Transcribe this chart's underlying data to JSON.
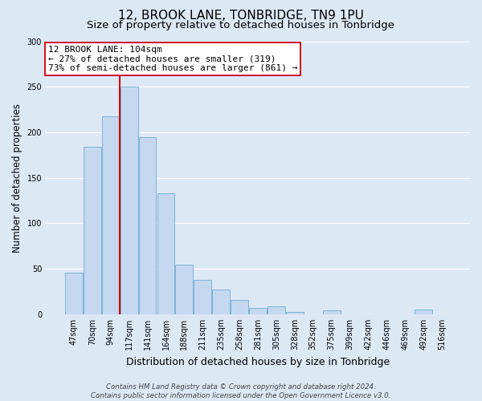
{
  "title": "12, BROOK LANE, TONBRIDGE, TN9 1PU",
  "subtitle": "Size of property relative to detached houses in Tonbridge",
  "xlabel": "Distribution of detached houses by size in Tonbridge",
  "ylabel": "Number of detached properties",
  "categories": [
    "47sqm",
    "70sqm",
    "94sqm",
    "117sqm",
    "141sqm",
    "164sqm",
    "188sqm",
    "211sqm",
    "235sqm",
    "258sqm",
    "281sqm",
    "305sqm",
    "328sqm",
    "352sqm",
    "375sqm",
    "399sqm",
    "422sqm",
    "446sqm",
    "469sqm",
    "492sqm",
    "516sqm"
  ],
  "values": [
    46,
    184,
    218,
    250,
    195,
    133,
    55,
    38,
    27,
    16,
    7,
    9,
    3,
    0,
    4,
    0,
    0,
    0,
    0,
    5,
    0
  ],
  "bar_color": "#c5d8f0",
  "bar_edge_color": "#7ab4d8",
  "vline_x_index": 2.5,
  "vline_color": "#cc0000",
  "ylim": [
    0,
    300
  ],
  "yticks": [
    0,
    50,
    100,
    150,
    200,
    250,
    300
  ],
  "annotation_line1": "12 BROOK LANE: 104sqm",
  "annotation_line2": "← 27% of detached houses are smaller (319)",
  "annotation_line3": "73% of semi-detached houses are larger (861) →",
  "annotation_box_facecolor": "#ffffff",
  "annotation_box_edgecolor": "#cc0000",
  "footer_line1": "Contains HM Land Registry data © Crown copyright and database right 2024.",
  "footer_line2": "Contains public sector information licensed under the Open Government Licence v3.0.",
  "fig_facecolor": "#dde8f5",
  "ax_facecolor": "#dde8f5",
  "grid_color": "#ffffff",
  "title_fontsize": 11,
  "subtitle_fontsize": 9.5,
  "ylabel_fontsize": 8.5,
  "xlabel_fontsize": 9,
  "tick_fontsize": 7,
  "annotation_fontsize": 8,
  "footer_fontsize": 6.2
}
